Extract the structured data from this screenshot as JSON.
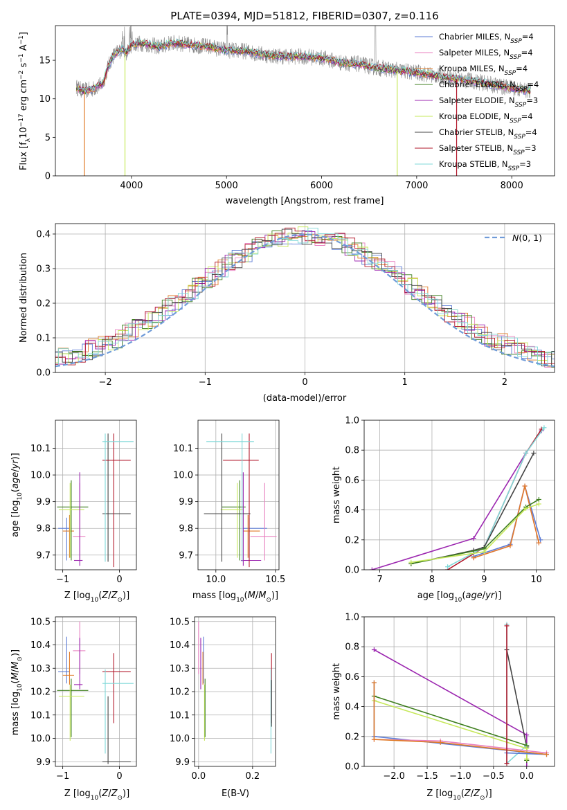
{
  "figure_title": "PLATE=0394, MJD=51812, FIBERID=0307, z=0.116",
  "colors": {
    "chabrier_miles": "#5b7bd5",
    "salpeter_miles": "#e87fbf",
    "kroupa_miles": "#e07b28",
    "chabrier_elodie": "#3f7f1f",
    "salpeter_elodie": "#9c27b0",
    "kroupa_elodie": "#c6e85a",
    "chabrier_stelib": "#444444",
    "salpeter_stelib": "#b2182b",
    "kroupa_stelib": "#7fd8d8",
    "gaussian": "#6f9bd8",
    "grid": "#b0b0b0"
  },
  "chart_data": [
    {
      "id": "spectrum",
      "type": "line",
      "xlabel": "wavelength [Angstrom, rest frame]",
      "ylabel": "Flux [f_λ10^-17 erg cm^-2 s^-1 A^-1]",
      "xlim": [
        3200,
        8450
      ],
      "ylim": [
        0,
        19.5
      ],
      "xticks": [
        4000,
        5000,
        6000,
        7000,
        8000
      ],
      "yticks": [
        0,
        5,
        10,
        15
      ],
      "grid": false,
      "legend_position": "top-right",
      "legend": [
        {
          "label": "Chabrier MILES, N_SSP=4",
          "key": "chabrier_miles"
        },
        {
          "label": "Salpeter MILES, N_SSP=4",
          "key": "salpeter_miles"
        },
        {
          "label": "Kroupa MILES, N_SSP=4",
          "key": "kroupa_miles"
        },
        {
          "label": "Chabrier ELODIE, N_SSP=4",
          "key": "chabrier_elodie"
        },
        {
          "label": "Salpeter ELODIE, N_SSP=3",
          "key": "salpeter_elodie"
        },
        {
          "label": "Kroupa ELODIE, N_SSP=4",
          "key": "kroupa_elodie"
        },
        {
          "label": "Chabrier STELIB, N_SSP=4",
          "key": "chabrier_stelib"
        },
        {
          "label": "Salpeter STELIB, N_SSP=3",
          "key": "salpeter_stelib"
        },
        {
          "label": "Kroupa STELIB, N_SSP=3",
          "key": "kroupa_stelib"
        }
      ],
      "data_curve": {
        "x": [
          3420,
          3500,
          3600,
          3700,
          3750,
          3800,
          3900,
          3950,
          4000,
          4100,
          4200,
          4300,
          4400,
          4500,
          4600,
          4800,
          5000,
          5200,
          5400,
          5600,
          5800,
          6000,
          6200,
          6400,
          6600,
          6800,
          7000,
          7200,
          7400,
          7600,
          7800,
          8000,
          8200
        ],
        "y": [
          11.5,
          11.0,
          11.3,
          12.0,
          14.0,
          15.5,
          16.5,
          16.0,
          17.0,
          17.2,
          17.0,
          16.7,
          17.2,
          17.2,
          17.0,
          16.8,
          16.3,
          16.2,
          15.7,
          15.5,
          15.5,
          15.3,
          14.7,
          14.5,
          14.0,
          13.7,
          13.4,
          13.0,
          12.6,
          12.3,
          11.8,
          11.4,
          11.0
        ]
      },
      "model_drops": [
        {
          "x": 3505,
          "key": "kroupa_miles"
        },
        {
          "x": 3932,
          "key": "kroupa_elodie"
        },
        {
          "x": 6795,
          "key": "kroupa_elodie"
        },
        {
          "x": 7420,
          "key": "salpeter_stelib"
        }
      ]
    },
    {
      "id": "residual_hist",
      "type": "line",
      "xlabel": "(data-model)/error",
      "ylabel": "Normed distribution",
      "xlim": [
        -2.5,
        2.5
      ],
      "ylim": [
        0,
        0.43
      ],
      "xticks": [
        -2,
        -1,
        0,
        1,
        2
      ],
      "yticks": [
        0.0,
        0.1,
        0.2,
        0.3,
        0.4
      ],
      "grid": true,
      "legend_position": "top-right",
      "legend_label": "N(0,1)",
      "gaussian": {
        "mean": 0,
        "sigma": 1
      }
    },
    {
      "id": "age_vs_Z",
      "type": "scatter",
      "xlabel": "Z [log10(Z/Z⊙)]",
      "ylabel": "age [log10(age/yr)]",
      "xlim": [
        -1.13,
        0.3
      ],
      "ylim": [
        9.645,
        10.205
      ],
      "xticks": [
        -1,
        0
      ],
      "yticks": [
        9.7,
        9.8,
        9.9,
        10.0,
        10.1
      ],
      "grid": true,
      "points": [
        {
          "key": "chabrier_miles",
          "x": -0.93,
          "xerr": [
            0.15,
            0.05
          ],
          "y": 9.8,
          "yerr": [
            0.12,
            0.04
          ]
        },
        {
          "key": "kroupa_miles",
          "x": -0.88,
          "xerr": [
            0.12,
            0.08
          ],
          "y": 9.79,
          "yerr": [
            0.1,
            0.06
          ]
        },
        {
          "key": "salpeter_miles",
          "x": -0.7,
          "xerr": [
            0.12,
            0.1
          ],
          "y": 9.77,
          "yerr": [
            0.09,
            0.2
          ]
        },
        {
          "key": "chabrier_elodie",
          "x": -0.85,
          "xerr": [
            0.25,
            0.3
          ],
          "y": 9.88,
          "yerr": [
            0.2,
            0.1
          ]
        },
        {
          "key": "kroupa_elodie",
          "x": -0.87,
          "xerr": [
            0.2,
            0.25
          ],
          "y": 9.87,
          "yerr": [
            0.18,
            0.1
          ]
        },
        {
          "key": "salpeter_elodie",
          "x": -0.7,
          "xerr": [
            0.1,
            0.05
          ],
          "y": 9.68,
          "yerr": [
            0.02,
            0.33
          ]
        },
        {
          "key": "chabrier_stelib",
          "x": -0.2,
          "xerr": [
            0.1,
            0.4
          ],
          "y": 9.855,
          "yerr": [
            0.18,
            0.3
          ]
        },
        {
          "key": "salpeter_stelib",
          "x": -0.1,
          "xerr": [
            0.2,
            0.3
          ],
          "y": 10.055,
          "yerr": [
            0.4,
            0.1
          ]
        },
        {
          "key": "kroupa_stelib",
          "x": -0.25,
          "xerr": [
            0.05,
            0.5
          ],
          "y": 10.125,
          "yerr": [
            0.45,
            0.03
          ]
        }
      ]
    },
    {
      "id": "age_vs_mass",
      "type": "scatter",
      "xlabel": "mass [log10(M/M⊙)]",
      "ylabel": "",
      "xlim": [
        9.85,
        10.53
      ],
      "ylim": [
        9.645,
        10.205
      ],
      "xticks": [
        10.0,
        10.5
      ],
      "yticks": [
        9.7,
        9.8,
        9.9,
        10.0,
        10.1
      ],
      "grid": true,
      "points": [
        {
          "key": "chabrier_miles",
          "x": 10.28,
          "xerr": [
            0.05,
            0.15
          ],
          "y": 9.8,
          "yerr": [
            0.12,
            0.04
          ]
        },
        {
          "key": "kroupa_miles",
          "x": 10.27,
          "xerr": [
            0.04,
            0.1
          ],
          "y": 9.79,
          "yerr": [
            0.1,
            0.06
          ]
        },
        {
          "key": "salpeter_miles",
          "x": 10.41,
          "xerr": [
            0.12,
            0.1
          ],
          "y": 9.77,
          "yerr": [
            0.09,
            0.2
          ]
        },
        {
          "key": "chabrier_elodie",
          "x": 10.2,
          "xerr": [
            0.15,
            0.05
          ],
          "y": 9.88,
          "yerr": [
            0.2,
            0.1
          ]
        },
        {
          "key": "kroupa_elodie",
          "x": 10.18,
          "xerr": [
            0.14,
            0.05
          ],
          "y": 9.87,
          "yerr": [
            0.18,
            0.1
          ]
        },
        {
          "key": "salpeter_elodie",
          "x": 10.23,
          "xerr": [
            0.02,
            0.15
          ],
          "y": 9.68,
          "yerr": [
            0.02,
            0.33
          ]
        },
        {
          "key": "chabrier_stelib",
          "x": 10.05,
          "xerr": [
            0.15,
            0.24
          ],
          "y": 9.855,
          "yerr": [
            0.18,
            0.3
          ]
        },
        {
          "key": "salpeter_stelib",
          "x": 10.28,
          "xerr": [
            0.22,
            0.08
          ],
          "y": 10.055,
          "yerr": [
            0.4,
            0.1
          ]
        },
        {
          "key": "kroupa_stelib",
          "x": 10.22,
          "xerr": [
            0.3,
            0.1
          ],
          "y": 10.125,
          "yerr": [
            0.45,
            0.03
          ]
        }
      ]
    },
    {
      "id": "massweight_vs_age",
      "type": "line",
      "xlabel": "age [log10(age/yr)]",
      "ylabel": "mass weight",
      "xlim": [
        6.7,
        10.35
      ],
      "ylim": [
        0,
        1
      ],
      "xticks": [
        7,
        8,
        9,
        10
      ],
      "yticks": [
        0.0,
        0.2,
        0.4,
        0.6,
        0.8,
        1.0
      ],
      "grid": true,
      "series": [
        {
          "key": "salpeter_elodie",
          "x": [
            6.85,
            8.8,
            9.8,
            10.1
          ],
          "y": [
            0.0,
            0.21,
            0.78,
            0.93
          ]
        },
        {
          "key": "salpeter_stelib",
          "x": [
            8.3,
            9.0,
            9.8,
            10.1
          ],
          "y": [
            0.0,
            0.15,
            0.78,
            0.94
          ]
        },
        {
          "key": "kroupa_stelib",
          "x": [
            8.3,
            9.0,
            9.8,
            10.15
          ],
          "y": [
            0.02,
            0.15,
            0.78,
            0.95
          ]
        },
        {
          "key": "chabrier_stelib",
          "x": [
            7.6,
            8.8,
            9.0,
            9.95
          ],
          "y": [
            0.04,
            0.13,
            0.15,
            0.78
          ]
        },
        {
          "key": "chabrier_miles",
          "x": [
            8.8,
            9.5,
            9.78,
            10.08
          ],
          "y": [
            0.09,
            0.17,
            0.56,
            0.2
          ]
        },
        {
          "key": "salpeter_miles",
          "x": [
            8.8,
            9.5,
            9.78,
            10.05
          ],
          "y": [
            0.08,
            0.16,
            0.56,
            0.18
          ]
        },
        {
          "key": "kroupa_miles",
          "x": [
            8.8,
            9.5,
            9.78,
            10.05
          ],
          "y": [
            0.08,
            0.16,
            0.56,
            0.18
          ]
        },
        {
          "key": "chabrier_elodie",
          "x": [
            7.6,
            9.0,
            9.8,
            10.05
          ],
          "y": [
            0.04,
            0.14,
            0.42,
            0.47
          ]
        },
        {
          "key": "kroupa_elodie",
          "x": [
            7.6,
            9.0,
            9.8,
            10.05
          ],
          "y": [
            0.05,
            0.12,
            0.41,
            0.44
          ]
        }
      ]
    },
    {
      "id": "mass_vs_Z",
      "type": "scatter",
      "xlabel": "Z [log10(Z/Z⊙)]",
      "ylabel": "mass [log10(M/M⊙)]",
      "xlim": [
        -1.13,
        0.3
      ],
      "ylim": [
        9.88,
        10.52
      ],
      "xticks": [
        -1,
        0
      ],
      "yticks": [
        9.9,
        10.0,
        10.1,
        10.2,
        10.3,
        10.4,
        10.5
      ],
      "grid": true,
      "points": [
        {
          "key": "chabrier_miles",
          "x": -0.93,
          "xerr": [
            0.15,
            0.05
          ],
          "y": 10.285,
          "yerr": [
            0.05,
            0.15
          ]
        },
        {
          "key": "kroupa_miles",
          "x": -0.88,
          "xerr": [
            0.12,
            0.08
          ],
          "y": 10.27,
          "yerr": [
            0.04,
            0.1
          ]
        },
        {
          "key": "salpeter_miles",
          "x": -0.7,
          "xerr": [
            0.12,
            0.1
          ],
          "y": 10.375,
          "yerr": [
            0.1,
            0.125
          ]
        },
        {
          "key": "chabrier_elodie",
          "x": -0.85,
          "xerr": [
            0.25,
            0.3
          ],
          "y": 10.205,
          "yerr": [
            0.2,
            0.05
          ]
        },
        {
          "key": "kroupa_elodie",
          "x": -0.87,
          "xerr": [
            0.2,
            0.25
          ],
          "y": 10.18,
          "yerr": [
            0.19,
            0.05
          ]
        },
        {
          "key": "salpeter_elodie",
          "x": -0.7,
          "xerr": [
            0.1,
            0.05
          ],
          "y": 10.23,
          "yerr": [
            0.02,
            0.2
          ]
        },
        {
          "key": "chabrier_stelib",
          "x": -0.2,
          "xerr": [
            0.1,
            0.4
          ],
          "y": 9.9,
          "yerr": [
            0.01,
            0.28
          ]
        },
        {
          "key": "salpeter_stelib",
          "x": -0.1,
          "xerr": [
            0.2,
            0.3
          ],
          "y": 10.285,
          "yerr": [
            0.22,
            0.08
          ]
        },
        {
          "key": "kroupa_stelib",
          "x": -0.25,
          "xerr": [
            0.05,
            0.5
          ],
          "y": 10.235,
          "yerr": [
            0.3,
            0.06
          ]
        }
      ]
    },
    {
      "id": "mass_vs_ebv",
      "type": "scatter",
      "xlabel": "E(B-V)",
      "ylabel": "",
      "xlim": [
        -0.015,
        0.285
      ],
      "ylim": [
        9.88,
        10.52
      ],
      "xticks": [
        0.0,
        0.2
      ],
      "yticks": [
        9.9,
        10.0,
        10.1,
        10.2,
        10.3,
        10.4,
        10.5
      ],
      "grid": true,
      "points": [
        {
          "key": "chabrier_miles",
          "x": 0.018,
          "y": 10.285,
          "yerr": [
            0.05,
            0.15
          ]
        },
        {
          "key": "salpeter_miles",
          "x": 0.0,
          "y": 10.375,
          "yerr": [
            0.1,
            0.125
          ]
        },
        {
          "key": "kroupa_miles",
          "x": 0.016,
          "y": 10.27,
          "yerr": [
            0.04,
            0.1
          ]
        },
        {
          "key": "salpeter_elodie",
          "x": 0.008,
          "y": 10.23,
          "yerr": [
            0.02,
            0.2
          ]
        },
        {
          "key": "kroupa_elodie",
          "x": 0.022,
          "y": 10.18,
          "yerr": [
            0.19,
            0.05
          ]
        },
        {
          "key": "chabrier_elodie",
          "x": 0.024,
          "y": 10.205,
          "yerr": [
            0.2,
            0.05
          ]
        },
        {
          "key": "salpeter_stelib",
          "x": 0.27,
          "y": 10.285,
          "yerr": [
            0.22,
            0.08
          ]
        },
        {
          "key": "kroupa_stelib",
          "x": 0.268,
          "y": 10.235,
          "yerr": [
            0.3,
            0.06
          ]
        },
        {
          "key": "chabrier_stelib",
          "x": 0.27,
          "y": 10.15,
          "yerr": [
            0.1,
            0.1
          ]
        }
      ]
    },
    {
      "id": "massweight_vs_Z",
      "type": "line",
      "xlabel": "Z [log10(Z/Z⊙)]",
      "ylabel": "mass weight",
      "xlim": [
        -2.45,
        0.42
      ],
      "ylim": [
        0,
        1
      ],
      "xticks": [
        -2.0,
        -1.5,
        -1.0,
        -0.5,
        0.0
      ],
      "yticks": [
        0.0,
        0.2,
        0.4,
        0.6,
        0.8,
        1.0
      ],
      "grid": true,
      "series": [
        {
          "key": "salpeter_elodie",
          "x": [
            -2.3,
            0.0,
            0.0
          ],
          "y": [
            0.78,
            0.21,
            0.0
          ]
        },
        {
          "key": "chabrier_stelib",
          "x": [
            -0.3,
            0.0,
            0.0
          ],
          "y": [
            0.78,
            0.13,
            0.04
          ]
        },
        {
          "key": "kroupa_stelib",
          "x": [
            -0.3,
            -0.3,
            0.0
          ],
          "y": [
            0.95,
            0.02,
            0.14
          ]
        },
        {
          "key": "chabrier_elodie",
          "x": [
            -2.3,
            0.0,
            0.0
          ],
          "y": [
            0.47,
            0.14,
            0.04
          ]
        },
        {
          "key": "kroupa_elodie",
          "x": [
            -2.3,
            0.0,
            0.0
          ],
          "y": [
            0.44,
            0.12,
            0.05
          ]
        },
        {
          "key": "chabrier_miles",
          "x": [
            -2.3,
            -2.3,
            0.3,
            -0.3
          ],
          "y": [
            0.56,
            0.2,
            0.08,
            0.09
          ]
        },
        {
          "key": "salpeter_miles",
          "x": [
            -2.3,
            -1.3,
            0.3
          ],
          "y": [
            0.18,
            0.17,
            0.09
          ]
        },
        {
          "key": "kroupa_miles",
          "x": [
            -2.3,
            -2.3,
            -1.3,
            0.3
          ],
          "y": [
            0.56,
            0.18,
            0.16,
            0.08
          ]
        },
        {
          "key": "salpeter_stelib",
          "x": [
            -0.3,
            -0.3
          ],
          "y": [
            0.94,
            0.02
          ]
        }
      ]
    }
  ]
}
